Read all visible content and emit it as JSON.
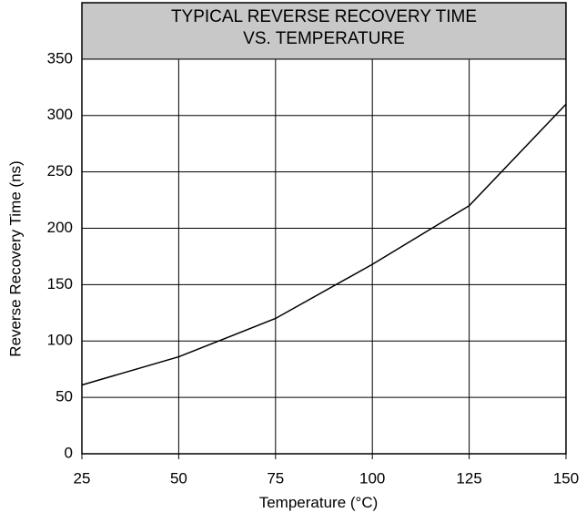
{
  "chart_data": {
    "type": "line",
    "title": [
      "TYPICAL REVERSE RECOVERY TIME",
      "VS. TEMPERATURE"
    ],
    "x_label": "Temperature (°C)",
    "y_label": "Reverse Recovery Time (ns)",
    "x": [
      25,
      50,
      75,
      100,
      125,
      150
    ],
    "values": [
      61,
      86,
      120,
      168,
      220,
      310
    ],
    "color": "#000000",
    "xlim": [
      25,
      150
    ],
    "xticks": [
      25,
      50,
      75,
      100,
      125,
      150
    ],
    "ylim": [
      0,
      400
    ],
    "yticks": [
      0,
      50,
      100,
      150,
      200,
      250,
      300,
      350
    ],
    "grid": true
  }
}
